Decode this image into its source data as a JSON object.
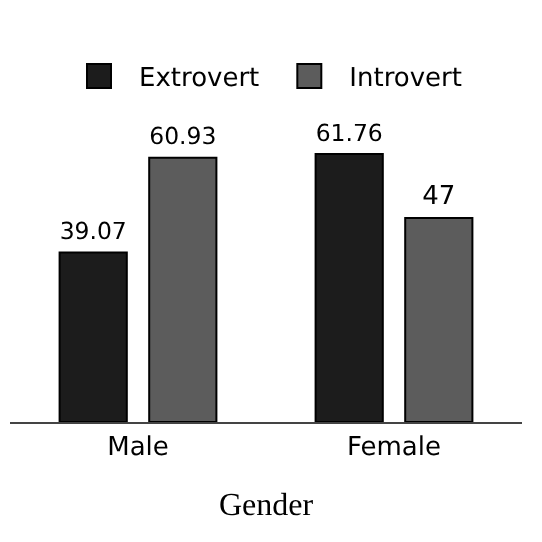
{
  "chart_data": {
    "type": "bar",
    "xlabel": "Gender",
    "categories": [
      "Male",
      "Female"
    ],
    "series": [
      {
        "name": "Extrovert",
        "color": "#1c1c1c",
        "values": [
          39.07,
          61.76
        ],
        "value_labels": [
          "39.07",
          "61.76"
        ]
      },
      {
        "name": "Introvert",
        "color": "#5c5c5c",
        "values": [
          60.93,
          47
        ],
        "value_labels": [
          "60.93",
          "47"
        ]
      }
    ],
    "tick_labels": "x",
    "legend": "top"
  }
}
